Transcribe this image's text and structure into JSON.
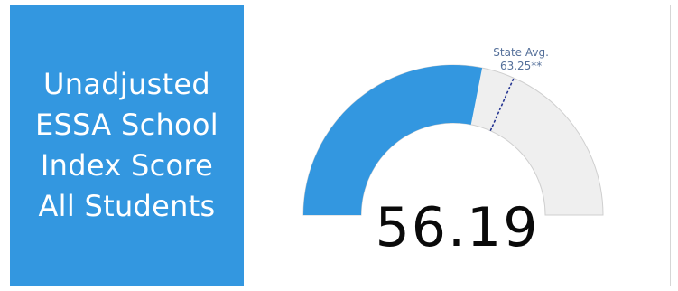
{
  "panel": {
    "title_lines": [
      "Unadjusted",
      "ESSA School",
      "Index Score",
      "All Students"
    ]
  },
  "gauge": {
    "score": 56.19,
    "score_label": "56.19",
    "min": 0,
    "max": 100,
    "fill_color": "#3397e0",
    "track_color": "#efefef",
    "state_avg": {
      "label": "State Avg.",
      "value_label": "63.25**",
      "value": 63.25,
      "marker_color": "#1f2f8f"
    }
  }
}
